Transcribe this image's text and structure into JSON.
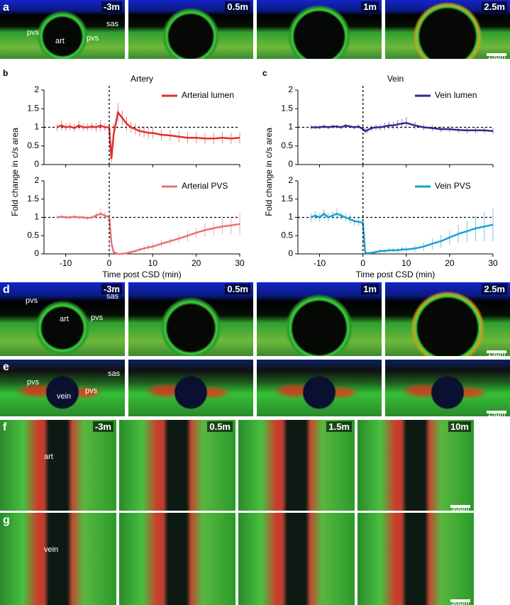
{
  "chart_data": [
    {
      "type": "line",
      "letter": "b",
      "title": "Artery",
      "x_label": "Time post CSD (min)",
      "y_label": "Fold change in c/s area",
      "xlim": [
        -15,
        30
      ],
      "xticks": [
        -10,
        0,
        10,
        20,
        30
      ],
      "ylim": [
        0,
        2
      ],
      "yticks": [
        0,
        0.5,
        1,
        1.5,
        2
      ],
      "reference_lines": {
        "x": 0,
        "y": 1
      },
      "legend": "upper right",
      "x": [
        -12,
        -11,
        -10,
        -9,
        -8,
        -7,
        -6,
        -5,
        -4,
        -3,
        -2,
        -1,
        0,
        0.5,
        1,
        2,
        3,
        4,
        5,
        6,
        7,
        8,
        9,
        10,
        12,
        14,
        16,
        18,
        20,
        22,
        24,
        26,
        28,
        30
      ],
      "series": [
        {
          "name": "Arterial lumen",
          "color": "#e0302e",
          "subplot": 0,
          "values": [
            1.0,
            1.05,
            1.0,
            1.02,
            0.98,
            1.05,
            1.0,
            1.0,
            1.02,
            1.0,
            1.05,
            1.0,
            1.0,
            0.15,
            0.8,
            1.4,
            1.25,
            1.1,
            1.0,
            0.95,
            0.9,
            0.88,
            0.85,
            0.85,
            0.8,
            0.78,
            0.75,
            0.72,
            0.72,
            0.7,
            0.7,
            0.72,
            0.7,
            0.72
          ],
          "errors": [
            0.1,
            0.12,
            0.1,
            0.1,
            0.1,
            0.12,
            0.1,
            0.1,
            0.1,
            0.12,
            0.15,
            0.1,
            0.1,
            0.1,
            0.3,
            0.25,
            0.2,
            0.2,
            0.15,
            0.15,
            0.15,
            0.15,
            0.15,
            0.15,
            0.15,
            0.15,
            0.15,
            0.15,
            0.15,
            0.15,
            0.15,
            0.15,
            0.15,
            0.15
          ]
        },
        {
          "name": "Arterial PVS",
          "color": "#e87272",
          "subplot": 1,
          "values": [
            1.0,
            1.02,
            1.0,
            1.0,
            1.02,
            1.0,
            1.0,
            0.98,
            1.0,
            1.05,
            1.1,
            1.05,
            1.0,
            0.3,
            0.05,
            0.0,
            0.0,
            0.02,
            0.05,
            0.08,
            0.12,
            0.15,
            0.18,
            0.2,
            0.28,
            0.35,
            0.42,
            0.5,
            0.58,
            0.65,
            0.7,
            0.75,
            0.78,
            0.82
          ],
          "errors": [
            0.05,
            0.05,
            0.05,
            0.05,
            0.05,
            0.05,
            0.05,
            0.05,
            0.05,
            0.08,
            0.15,
            0.1,
            0.05,
            0.1,
            0.05,
            0.02,
            0.02,
            0.03,
            0.05,
            0.05,
            0.06,
            0.08,
            0.08,
            0.1,
            0.1,
            0.1,
            0.12,
            0.15,
            0.15,
            0.18,
            0.2,
            0.22,
            0.25,
            0.3
          ]
        }
      ]
    },
    {
      "type": "line",
      "letter": "c",
      "title": "Vein",
      "x_label": "Time post CSD (min)",
      "y_label": "Fold change in c/s area",
      "xlim": [
        -15,
        30
      ],
      "xticks": [
        -10,
        0,
        10,
        20,
        30
      ],
      "ylim": [
        0,
        2
      ],
      "yticks": [
        0,
        0.5,
        1,
        1.5,
        2
      ],
      "reference_lines": {
        "x": 0,
        "y": 1
      },
      "legend": "upper right",
      "x": [
        -12,
        -11,
        -10,
        -9,
        -8,
        -7,
        -6,
        -5,
        -4,
        -3,
        -2,
        -1,
        0,
        0.5,
        1,
        2,
        3,
        4,
        5,
        6,
        7,
        8,
        9,
        10,
        12,
        14,
        16,
        18,
        20,
        22,
        24,
        26,
        28,
        30
      ],
      "series": [
        {
          "name": "Vein lumen",
          "color": "#2b2b8c",
          "subplot": 0,
          "values": [
            1.0,
            1.0,
            1.0,
            1.02,
            1.0,
            1.02,
            1.02,
            1.0,
            1.05,
            1.02,
            1.0,
            1.02,
            0.95,
            0.9,
            0.92,
            0.98,
            1.0,
            1.0,
            1.02,
            1.05,
            1.05,
            1.08,
            1.1,
            1.12,
            1.05,
            1.0,
            0.98,
            0.95,
            0.95,
            0.93,
            0.92,
            0.92,
            0.92,
            0.9
          ],
          "errors": [
            0.05,
            0.05,
            0.05,
            0.05,
            0.05,
            0.05,
            0.05,
            0.05,
            0.05,
            0.05,
            0.05,
            0.05,
            0.06,
            0.08,
            0.08,
            0.08,
            0.08,
            0.08,
            0.1,
            0.1,
            0.1,
            0.12,
            0.12,
            0.15,
            0.1,
            0.08,
            0.08,
            0.08,
            0.08,
            0.08,
            0.08,
            0.08,
            0.08,
            0.08
          ]
        },
        {
          "name": "Vein PVS",
          "color": "#1aa0d2",
          "subplot": 1,
          "values": [
            1.0,
            1.05,
            1.0,
            1.1,
            1.0,
            1.05,
            1.1,
            1.05,
            1.0,
            0.95,
            0.9,
            0.88,
            0.85,
            0.05,
            0.02,
            0.03,
            0.05,
            0.08,
            0.08,
            0.1,
            0.1,
            0.1,
            0.12,
            0.12,
            0.15,
            0.2,
            0.28,
            0.35,
            0.45,
            0.55,
            0.62,
            0.7,
            0.75,
            0.8
          ],
          "errors": [
            0.12,
            0.12,
            0.12,
            0.12,
            0.12,
            0.12,
            0.15,
            0.12,
            0.12,
            0.12,
            0.12,
            0.12,
            0.12,
            0.05,
            0.03,
            0.04,
            0.05,
            0.05,
            0.05,
            0.06,
            0.06,
            0.06,
            0.08,
            0.08,
            0.1,
            0.12,
            0.15,
            0.18,
            0.2,
            0.25,
            0.3,
            0.35,
            0.4,
            0.45
          ]
        }
      ]
    }
  ],
  "image_panels": [
    {
      "letter": "a",
      "times": [
        "-3m",
        "0.5m",
        "1m",
        "2.5m"
      ],
      "labels": [
        "pvs",
        "art",
        "pvs",
        "sas"
      ],
      "scale": "15μm"
    },
    {
      "letter": "d",
      "times": [
        "-3m",
        "0.5m",
        "1m",
        "2.5m"
      ],
      "labels": [
        "pvs",
        "art",
        "pvs",
        "sas"
      ],
      "scale": "15μm"
    },
    {
      "letter": "e",
      "times": [],
      "labels": [
        "sas",
        "pvs",
        "vein",
        "pvs"
      ],
      "scale": "15μm"
    },
    {
      "letter": "f",
      "times": [
        "-3m",
        "0.5m",
        "1.5m",
        "10m"
      ],
      "labels": [
        "art"
      ],
      "scale": "30μm"
    },
    {
      "letter": "g",
      "times": [],
      "labels": [
        "vein"
      ],
      "scale": "30μm"
    }
  ]
}
